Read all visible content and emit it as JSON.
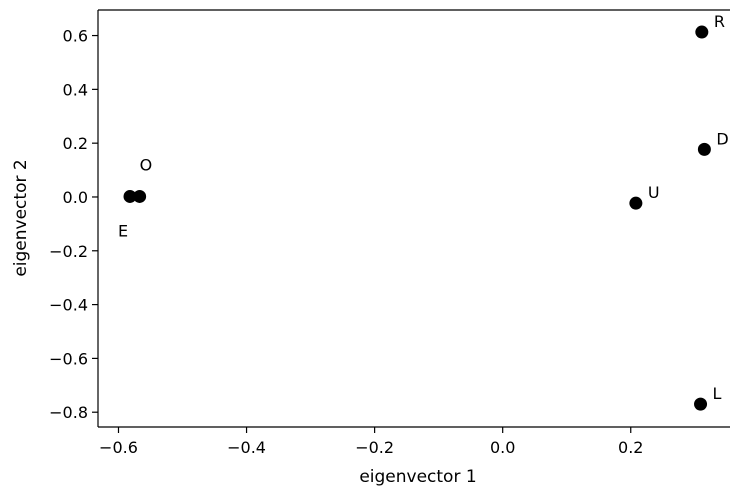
{
  "chart_data": {
    "type": "scatter",
    "xlabel": "eigenvector 1",
    "ylabel": "eigenvector 2",
    "xlim": [
      -0.632,
      0.355
    ],
    "ylim": [
      -0.855,
      0.695
    ],
    "x_ticks": [
      -0.6,
      -0.4,
      -0.2,
      0.0,
      0.2
    ],
    "x_tick_labels": [
      "−0.6",
      "−0.4",
      "−0.2",
      "0.0",
      "0.2"
    ],
    "y_ticks": [
      0.6,
      0.4,
      0.2,
      0.0,
      -0.2,
      -0.4,
      -0.6,
      -0.8
    ],
    "y_tick_labels": [
      "0.6",
      "0.4",
      "0.2",
      "0.0",
      "−0.2",
      "−0.4",
      "−0.6",
      "−0.8"
    ],
    "grid": false,
    "marker_color": "#000000",
    "points": [
      {
        "label": "R",
        "x": 0.311,
        "y": 0.613
      },
      {
        "label": "D",
        "x": 0.315,
        "y": 0.177
      },
      {
        "label": "O",
        "x": -0.567,
        "y": 0.002
      },
      {
        "label": "E",
        "x": -0.582,
        "y": 0.002
      },
      {
        "label": "U",
        "x": 0.208,
        "y": -0.023
      },
      {
        "label": "L",
        "x": 0.309,
        "y": -0.77
      }
    ]
  }
}
